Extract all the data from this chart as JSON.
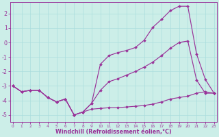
{
  "x": [
    0,
    1,
    2,
    3,
    4,
    5,
    6,
    7,
    8,
    9,
    10,
    11,
    12,
    13,
    14,
    15,
    16,
    17,
    18,
    19,
    20,
    21,
    22,
    23
  ],
  "line_top": [
    -3.0,
    -3.4,
    -3.3,
    -3.3,
    -3.8,
    -4.1,
    -3.9,
    -5.0,
    -4.8,
    -4.2,
    -1.5,
    -0.9,
    -0.7,
    -0.55,
    -0.35,
    0.15,
    1.05,
    1.6,
    2.2,
    2.5,
    2.5,
    -0.8,
    -2.55,
    -3.5
  ],
  "line_mid": [
    -3.0,
    -3.4,
    -3.3,
    -3.3,
    -3.8,
    -4.1,
    -3.9,
    -5.0,
    -4.8,
    -4.2,
    -3.3,
    -2.7,
    -2.5,
    -2.25,
    -2.0,
    -1.7,
    -1.35,
    -0.9,
    -0.4,
    0.0,
    0.1,
    -2.6,
    -3.5,
    -3.5
  ],
  "line_bot": [
    -3.0,
    -3.4,
    -3.3,
    -3.3,
    -3.8,
    -4.1,
    -3.9,
    -5.0,
    -4.8,
    -4.6,
    -4.55,
    -4.5,
    -4.5,
    -4.45,
    -4.4,
    -4.35,
    -4.25,
    -4.1,
    -3.9,
    -3.8,
    -3.7,
    -3.5,
    -3.4,
    -3.5
  ],
  "xlim": [
    -0.3,
    23.3
  ],
  "ylim": [
    -5.5,
    2.8
  ],
  "yticks": [
    -5,
    -4,
    -3,
    -2,
    -1,
    0,
    1,
    2
  ],
  "xticks": [
    0,
    1,
    2,
    3,
    4,
    5,
    6,
    7,
    8,
    9,
    10,
    11,
    12,
    13,
    14,
    15,
    16,
    17,
    18,
    19,
    20,
    21,
    22,
    23
  ],
  "xlabel": "Windchill (Refroidissement éolien,°C)",
  "line_color": "#993399",
  "bg_color": "#cceee8",
  "grid_color": "#aadddd",
  "marker": "D",
  "markersize": 2.0,
  "linewidth": 0.85
}
